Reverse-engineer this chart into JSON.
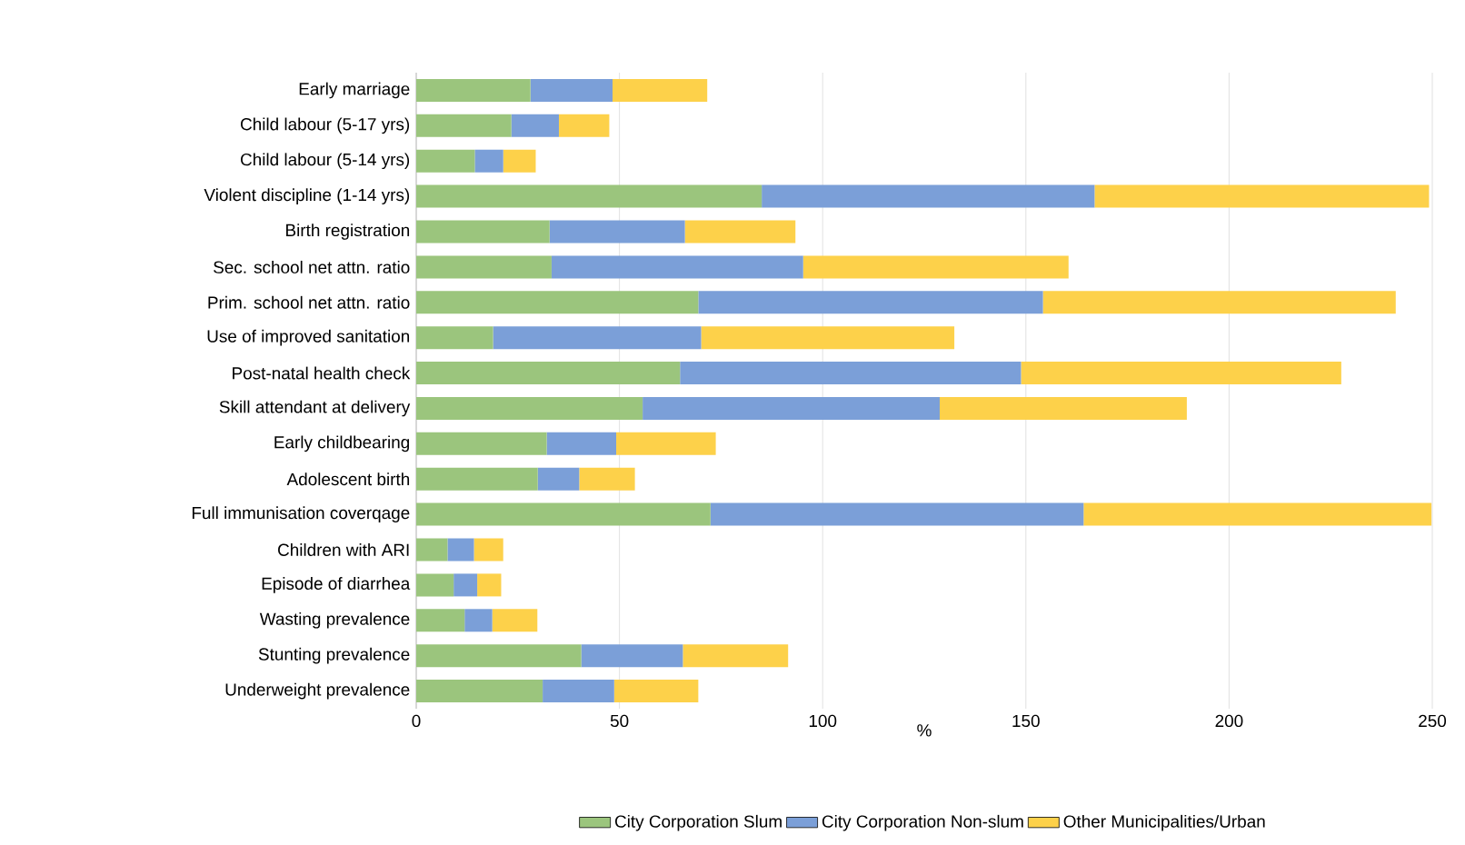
{
  "chart_data": {
    "type": "bar",
    "orientation": "horizontal",
    "stacked": true,
    "xlabel": "%",
    "grid": "x",
    "legend": "bottom",
    "categories": [
      "Early marriage",
      "Child labour (5-17 yrs)",
      "Child labour (5-14 yrs)",
      "Violent discipline (1-14 yrs)",
      "Birth registration",
      "Sec. school net attn. ratio",
      "Prim. school net attn. ratio",
      "Use of improved sanitation",
      "Post-natal health check",
      "Skill attendant at delivery",
      "Early childbearing",
      "Adolescent birth",
      "Full immunisation coverqage",
      "Children with ARI",
      "Episode of diarrhea",
      "Wasting prevalence",
      "Stunting prevalence",
      "Underweight prevalence"
    ],
    "xlim": [
      0,
      250
    ],
    "xticks": [
      0,
      50,
      100,
      150,
      200,
      250
    ],
    "series": [
      {
        "name": "City Corporation Slum",
        "color": "#9bc57d",
        "values": [
          28.1,
          23.4,
          14.4,
          85,
          32.8,
          33.3,
          69.4,
          18.9,
          64.9,
          55.7,
          32.1,
          29.9,
          72.4,
          7.7,
          9.2,
          11.9,
          40.6,
          31.1
        ]
      },
      {
        "name": "City Corporation Non-slum",
        "color": "#7b9fd8",
        "values": [
          20.2,
          11.7,
          7,
          81.9,
          33.3,
          61.9,
          84.8,
          51.2,
          83.9,
          73.1,
          17.1,
          10.2,
          91.8,
          6.5,
          5.8,
          6.8,
          25,
          17.6
        ]
      },
      {
        "name": "Other Municipalities/Urban",
        "color": "#fdd14a",
        "values": [
          23.3,
          12.4,
          8,
          82.3,
          27.2,
          65.3,
          86.8,
          62.3,
          78.8,
          60.8,
          24.5,
          13.7,
          85.6,
          7.2,
          5.9,
          11.1,
          25.9,
          20.7
        ]
      }
    ]
  }
}
